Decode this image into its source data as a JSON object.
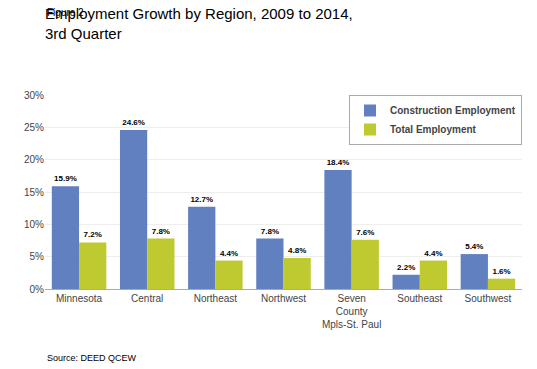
{
  "chart_data": {
    "type": "bar",
    "title": "Employment Growth by Region, 2009 to 2014,\n3rd Quarter",
    "annotations": [
      "Figure 2",
      "Source: DEED QCEW"
    ],
    "categories": [
      "Minnesota",
      "Central",
      "Northeast",
      "Northwest",
      "Seven\nCounty\nMpls-St. Paul",
      "Southeast",
      "Southwest"
    ],
    "series": [
      {
        "name": "Construction Employment",
        "color": "#6080C0",
        "values": [
          15.9,
          24.6,
          12.7,
          7.8,
          18.4,
          2.2,
          5.4
        ],
        "value_labels": [
          "15.9%",
          "24.6%",
          "12.7%",
          "7.8%",
          "18.4%",
          "2.2%",
          "5.4%"
        ]
      },
      {
        "name": "Total Employment",
        "color": "#BFCA30",
        "values": [
          7.2,
          7.8,
          4.4,
          4.8,
          7.6,
          4.4,
          1.6
        ],
        "value_labels": [
          "7.2%",
          "7.8%",
          "4.4%",
          "4.8%",
          "7.6%",
          "4.4%",
          "1.6%"
        ]
      }
    ],
    "ylim": [
      0,
      30
    ],
    "yticks": [
      {
        "value": 0,
        "label": "0%"
      },
      {
        "value": 5,
        "label": "5%"
      },
      {
        "value": 10,
        "label": "10%"
      },
      {
        "value": 15,
        "label": "15%"
      },
      {
        "value": 20,
        "label": "20%"
      },
      {
        "value": 25,
        "label": "25%"
      },
      {
        "value": 30,
        "label": "30%"
      }
    ],
    "grid": true,
    "legend": "upper right",
    "data_labels": true
  }
}
